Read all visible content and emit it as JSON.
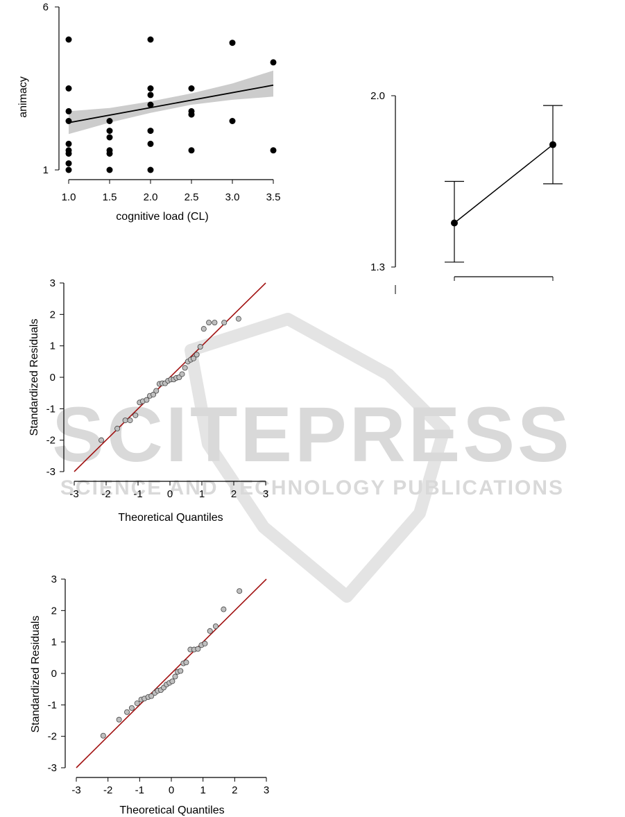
{
  "watermark": {
    "brand": "SCITEPRESS",
    "tagline": "SCIENCE AND TECHNOLOGY PUBLICATIONS"
  },
  "chart_data": [
    {
      "id": "scatter",
      "type": "scatter",
      "xlabel": "cognitive load (CL)",
      "ylabel": "animacy",
      "xlim": [
        1.0,
        3.5
      ],
      "ylim": [
        1,
        6
      ],
      "x_ticks": [
        "1.0",
        "1.5",
        "2.0",
        "2.5",
        "3.0",
        "3.5"
      ],
      "y_ticks": [
        "1",
        "6"
      ],
      "points": [
        [
          1.0,
          5.0
        ],
        [
          1.0,
          3.5
        ],
        [
          1.0,
          2.8
        ],
        [
          1.0,
          2.5
        ],
        [
          1.0,
          1.8
        ],
        [
          1.0,
          1.6
        ],
        [
          1.0,
          1.5
        ],
        [
          1.0,
          1.2
        ],
        [
          1.0,
          1.0
        ],
        [
          1.5,
          2.5
        ],
        [
          1.5,
          2.2
        ],
        [
          1.5,
          2.0
        ],
        [
          1.5,
          1.6
        ],
        [
          1.5,
          1.5
        ],
        [
          1.5,
          1.0
        ],
        [
          2.0,
          5.0
        ],
        [
          2.0,
          3.5
        ],
        [
          2.0,
          3.3
        ],
        [
          2.0,
          3.0
        ],
        [
          2.0,
          2.2
        ],
        [
          2.0,
          1.8
        ],
        [
          2.0,
          1.0
        ],
        [
          2.5,
          3.5
        ],
        [
          2.5,
          2.8
        ],
        [
          2.5,
          2.7
        ],
        [
          2.5,
          1.6
        ],
        [
          3.0,
          4.9
        ],
        [
          3.0,
          2.5
        ],
        [
          3.5,
          4.3
        ],
        [
          3.5,
          1.6
        ]
      ],
      "regression": {
        "x": [
          1.0,
          3.5
        ],
        "y": [
          2.45,
          3.6
        ]
      },
      "confidence_band": {
        "x": [
          1.0,
          1.5,
          2.0,
          2.5,
          3.0,
          3.5
        ],
        "lower": [
          2.1,
          2.45,
          2.75,
          3.0,
          3.15,
          3.25
        ],
        "upper": [
          2.8,
          2.9,
          3.1,
          3.35,
          3.65,
          4.05
        ]
      },
      "colors": {
        "points": "#000000",
        "line": "#000000",
        "band": "#cccccc"
      }
    },
    {
      "id": "means",
      "type": "line",
      "y_ticks": [
        "1.3",
        "2.0"
      ],
      "ylim": [
        1.3,
        2.0
      ],
      "x": [
        1,
        2
      ],
      "means": [
        1.48,
        1.8
      ],
      "error_low": [
        1.32,
        1.64
      ],
      "error_high": [
        1.65,
        1.96
      ],
      "colors": {
        "line": "#000000",
        "points": "#000000"
      }
    },
    {
      "id": "qq1",
      "type": "scatter",
      "xlabel": "Theoretical Quantiles",
      "ylabel": "Standardized Residuals",
      "xlim": [
        -3,
        3
      ],
      "ylim": [
        -3,
        3
      ],
      "x_ticks": [
        "-3",
        "-2",
        "-1",
        "0",
        "1",
        "2",
        "3"
      ],
      "y_ticks": [
        "-3",
        "-2",
        "-1",
        "0",
        "1",
        "2",
        "3"
      ],
      "reference_line": {
        "x": [
          -3,
          3
        ],
        "y": [
          -3,
          3
        ]
      },
      "points": [
        [
          -2.15,
          -2.0
        ],
        [
          -1.65,
          -1.63
        ],
        [
          -1.4,
          -1.37
        ],
        [
          -1.25,
          -1.37
        ],
        [
          -1.08,
          -1.21
        ],
        [
          -0.95,
          -0.8
        ],
        [
          -0.85,
          -0.76
        ],
        [
          -0.73,
          -0.72
        ],
        [
          -0.63,
          -0.59
        ],
        [
          -0.52,
          -0.55
        ],
        [
          -0.43,
          -0.43
        ],
        [
          -0.33,
          -0.21
        ],
        [
          -0.24,
          -0.19
        ],
        [
          -0.15,
          -0.19
        ],
        [
          -0.06,
          -0.11
        ],
        [
          0.03,
          -0.07
        ],
        [
          0.12,
          -0.07
        ],
        [
          0.2,
          -0.02
        ],
        [
          0.29,
          0.0
        ],
        [
          0.38,
          0.1
        ],
        [
          0.47,
          0.3
        ],
        [
          0.56,
          0.5
        ],
        [
          0.65,
          0.56
        ],
        [
          0.74,
          0.6
        ],
        [
          0.84,
          0.72
        ],
        [
          0.95,
          0.97
        ],
        [
          1.06,
          1.54
        ],
        [
          1.22,
          1.74
        ],
        [
          1.4,
          1.74
        ],
        [
          1.7,
          1.74
        ],
        [
          2.15,
          1.86
        ]
      ],
      "colors": {
        "points": "#bfbfbf",
        "line": "#a11111"
      }
    },
    {
      "id": "qq2",
      "type": "scatter",
      "xlabel": "Theoretical Quantiles",
      "ylabel": "Standardized Residuals",
      "xlim": [
        -3,
        3
      ],
      "ylim": [
        -3,
        3
      ],
      "x_ticks": [
        "-3",
        "-2",
        "-1",
        "0",
        "1",
        "2",
        "3"
      ],
      "y_ticks": [
        "-3",
        "-2",
        "-1",
        "0",
        "1",
        "2",
        "3"
      ],
      "reference_line": {
        "x": [
          -3,
          3
        ],
        "y": [
          -3,
          3
        ]
      },
      "points": [
        [
          -2.15,
          -1.98
        ],
        [
          -1.65,
          -1.47
        ],
        [
          -1.4,
          -1.23
        ],
        [
          -1.25,
          -1.1
        ],
        [
          -1.08,
          -0.95
        ],
        [
          -0.95,
          -0.83
        ],
        [
          -0.85,
          -0.8
        ],
        [
          -0.73,
          -0.75
        ],
        [
          -0.63,
          -0.72
        ],
        [
          -0.52,
          -0.62
        ],
        [
          -0.43,
          -0.55
        ],
        [
          -0.33,
          -0.53
        ],
        [
          -0.24,
          -0.45
        ],
        [
          -0.15,
          -0.35
        ],
        [
          -0.06,
          -0.3
        ],
        [
          0.03,
          -0.25
        ],
        [
          0.12,
          -0.1
        ],
        [
          0.2,
          0.05
        ],
        [
          0.29,
          0.08
        ],
        [
          0.38,
          0.32
        ],
        [
          0.47,
          0.35
        ],
        [
          0.6,
          0.76
        ],
        [
          0.72,
          0.76
        ],
        [
          0.84,
          0.78
        ],
        [
          0.95,
          0.9
        ],
        [
          1.06,
          0.95
        ],
        [
          1.22,
          1.35
        ],
        [
          1.4,
          1.5
        ],
        [
          1.65,
          2.04
        ],
        [
          2.15,
          2.62
        ]
      ],
      "colors": {
        "points": "#bfbfbf",
        "line": "#a11111"
      }
    }
  ]
}
